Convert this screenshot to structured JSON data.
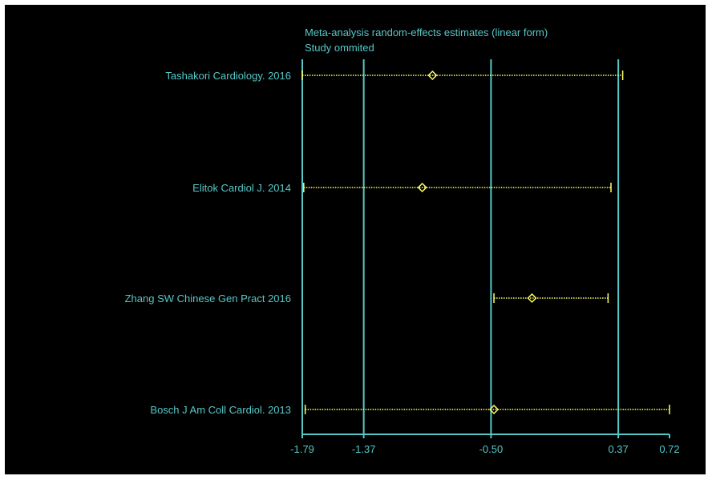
{
  "chart_data": {
    "type": "forest",
    "title": "Meta-analysis random-effects estimates (linear form)",
    "subtitle": "Study ommited",
    "studies": [
      {
        "label": "Tashakori Cardiology. 2016",
        "estimate": -0.9,
        "lower": -1.79,
        "upper": 0.4
      },
      {
        "label": "Elitok Cardiol J. 2014",
        "estimate": -0.97,
        "lower": -1.78,
        "upper": 0.32
      },
      {
        "label": "Zhang SW Chinese Gen Pract 2016",
        "estimate": -0.22,
        "lower": -0.48,
        "upper": 0.3
      },
      {
        "label": "Bosch J Am Coll Cardiol. 2013",
        "estimate": -0.48,
        "lower": -1.77,
        "upper": 0.72
      }
    ],
    "x_ticks": [
      {
        "value": -1.79,
        "label": "-1.79"
      },
      {
        "value": -1.37,
        "label": "-1.37"
      },
      {
        "value": -0.5,
        "label": "-0.50"
      },
      {
        "value": 0.37,
        "label": "0.37"
      },
      {
        "value": 0.72,
        "label": "0.72"
      }
    ],
    "reference_lines": [
      -1.79,
      -1.37,
      -0.5,
      0.37
    ],
    "xlim": [
      -1.79,
      0.72
    ],
    "colors": {
      "background": "#000000",
      "axis": "#56c8c8",
      "ci": "#ffff66",
      "marker": "#ffff66",
      "text": "#56c8c8"
    }
  }
}
